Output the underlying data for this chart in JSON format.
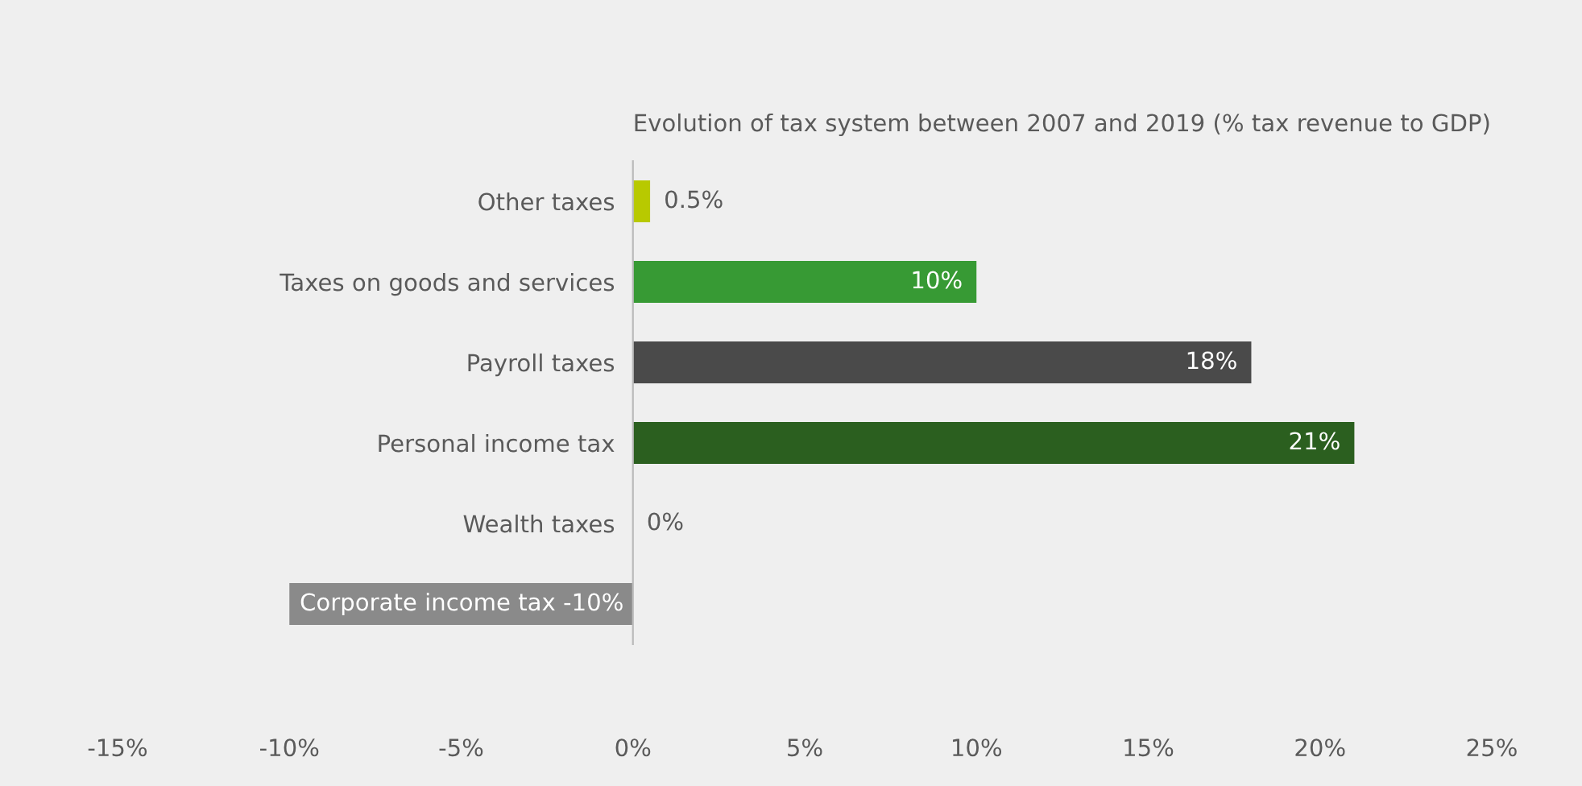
{
  "chart_data": {
    "type": "bar",
    "orientation": "horizontal",
    "title": "Evolution of tax system between 2007 and 2019 (% tax revenue to GDP)",
    "categories": [
      "Other taxes",
      "Taxes on goods and services",
      "Payroll taxes",
      "Personal income tax",
      "Wealth taxes",
      "Corporate income tax"
    ],
    "values": [
      0.5,
      10,
      18,
      21,
      0,
      -10
    ],
    "colors": [
      "#b8c900",
      "#379a34",
      "#4a4a4a",
      "#2b5f1f",
      "#8a8a8a",
      "#8a8a8a"
    ],
    "value_labels": [
      "0.5%",
      "10%",
      "18%",
      "21%",
      "0%",
      "-10%"
    ],
    "xlim": [
      -15,
      25
    ],
    "xticks": [
      {
        "value": -15,
        "label": "-15%"
      },
      {
        "value": -10,
        "label": "-10%"
      },
      {
        "value": -5,
        "label": "-5%"
      },
      {
        "value": 0,
        "label": "0%"
      },
      {
        "value": 5,
        "label": "5%"
      },
      {
        "value": 10,
        "label": "10%"
      },
      {
        "value": 15,
        "label": "15%"
      },
      {
        "value": 20,
        "label": "20%"
      },
      {
        "value": 25,
        "label": "25%"
      }
    ],
    "grid": false,
    "legend": false
  }
}
